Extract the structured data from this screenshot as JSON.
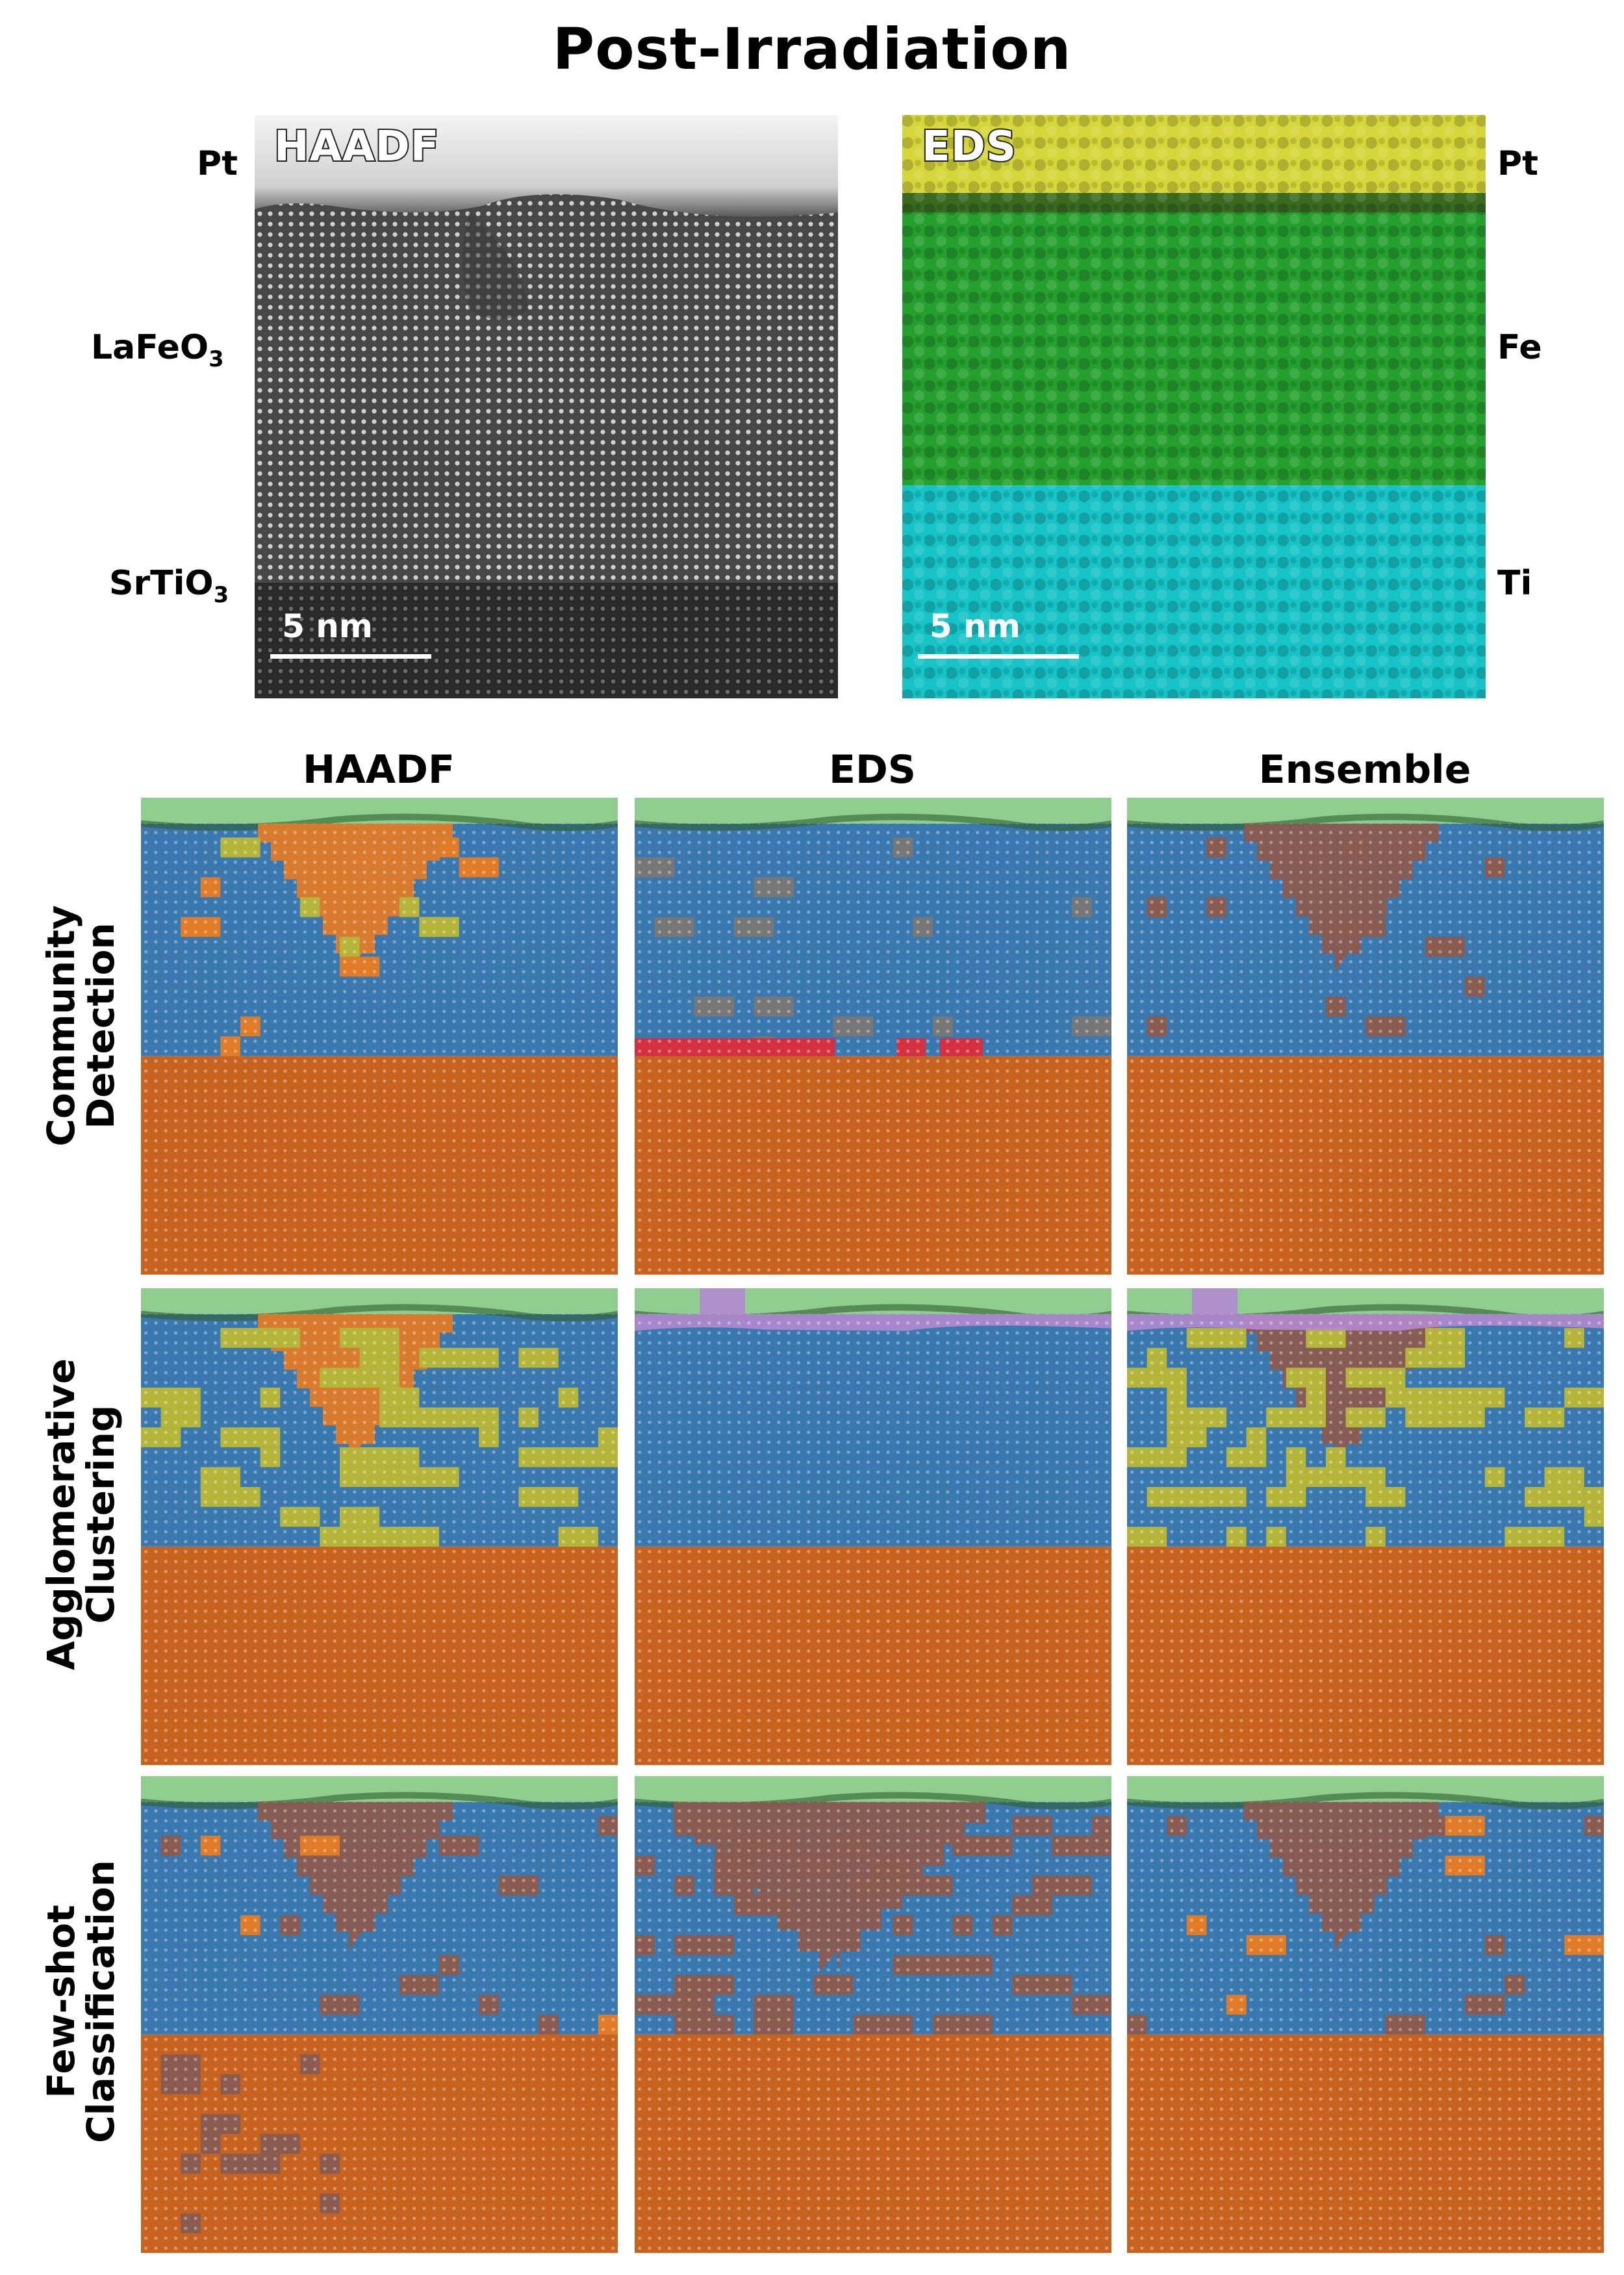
{
  "figure": {
    "title": "Post-Irradiation",
    "haadf_image": {
      "label": "HAADF",
      "scale_bar": "5 nm"
    },
    "eds_image": {
      "label": "EDS",
      "scale_bar": "5 nm"
    },
    "left_layer_labels": [
      "Pt",
      "LaFeO",
      "SrTiO"
    ],
    "left_layer_subscripts": [
      "",
      "3",
      "3"
    ],
    "right_element_labels": [
      "Pt",
      "Fe",
      "Ti"
    ],
    "columns": [
      "HAADF",
      "EDS",
      "Ensemble"
    ],
    "rows": [
      {
        "line1": "Community",
        "line2": "Detection"
      },
      {
        "line1": "Agglomerative",
        "line2": "Clustering"
      },
      {
        "line1": "Few-shot",
        "line2": "Classification"
      }
    ]
  },
  "colors": {
    "pt_cap": "#8fce8f",
    "lafeo3": "#3a78b0",
    "srtio3": "#c8631f",
    "orange": "#e07b27",
    "olive": "#b5b53a",
    "brown": "#8a5b50",
    "red": "#d43040",
    "purple": "#b48ad0",
    "eds_pt": "#e3e35a",
    "eds_fe": "#27a632",
    "eds_ti": "#19c9cc"
  }
}
